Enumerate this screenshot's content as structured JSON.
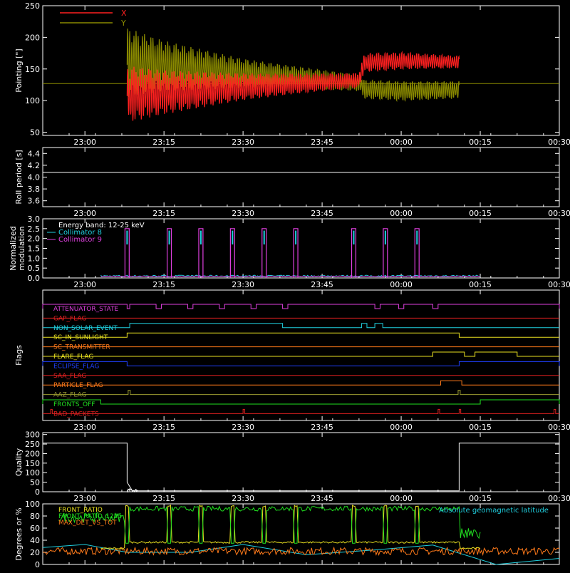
{
  "x_ticks": [
    "23:00",
    "23:15",
    "23:30",
    "23:45",
    "00:00",
    "00:15",
    "00:30"
  ],
  "colors": {
    "background": "#000000",
    "axes": "#ffffff",
    "x": "#ff2020",
    "y": "#8a8a00",
    "magenta": "#e040e0",
    "cyan": "#20d0e0",
    "white": "#ffffff",
    "red": "#e02020",
    "orange": "#ff7a1a",
    "yellow": "#e8e020",
    "green": "#20e020",
    "blue": "#2040ff",
    "olive": "#9a9a30"
  },
  "chart_data": [
    {
      "type": "line",
      "ylabel": "Pointing [\"]",
      "yticks": [
        "50",
        "100",
        "150",
        "200",
        "250"
      ],
      "ylim": [
        45,
        250
      ],
      "legend": [
        {
          "name": "X",
          "color": "#ff2020"
        },
        {
          "name": "Y",
          "color": "#8a8a00"
        }
      ],
      "baseline": 127,
      "series": [
        {
          "name": "X",
          "x": [
            "23:08",
            "23:15",
            "23:30",
            "23:45",
            "23:52",
            "23:53",
            "00:00",
            "00:11"
          ],
          "center": [
            110,
            113,
            122,
            129,
            132,
            160,
            163,
            161
          ],
          "amplitude": [
            45,
            35,
            22,
            14,
            12,
            15,
            14,
            10
          ]
        },
        {
          "name": "Y",
          "x": [
            "23:08",
            "23:15",
            "23:30",
            "23:45",
            "23:52",
            "23:53",
            "00:00",
            "00:11"
          ],
          "center": [
            160,
            155,
            143,
            133,
            128,
            118,
            115,
            117
          ],
          "amplitude": [
            55,
            40,
            24,
            16,
            13,
            15,
            16,
            14
          ]
        }
      ]
    },
    {
      "type": "line",
      "ylabel": "Roll period [s]",
      "yticks": [
        "3.6",
        "3.8",
        "4.0",
        "4.2",
        "4.4"
      ],
      "ylim": [
        3.5,
        4.5
      ],
      "series": [
        {
          "name": "",
          "x": [
            "22:52",
            "00:30"
          ],
          "y": [
            4.08,
            4.08
          ]
        }
      ]
    },
    {
      "type": "line",
      "ylabel": "Normalized modulation",
      "yticks": [
        "0.0",
        "0.5",
        "1.0",
        "1.5",
        "2.0",
        "2.5",
        "3.0"
      ],
      "ylim": [
        0,
        3
      ],
      "legend": [
        {
          "name": "Energy band: 12-25 keV",
          "color": "#ffffff"
        },
        {
          "name": "Collimator 8",
          "color": "#20d0e0"
        },
        {
          "name": "Collimator 9",
          "color": "#e040e0"
        }
      ],
      "spikes_at": [
        "23:08",
        "23:16",
        "23:22",
        "23:28",
        "23:34",
        "23:40",
        "23:51",
        "23:57",
        "00:03"
      ],
      "spike_peak": 2.5,
      "noise_range": [
        "23:03",
        "00:15"
      ]
    },
    {
      "type": "line",
      "ylabel": "Flags",
      "rows": [
        {
          "label": "ATTENUATOR_STATE",
          "color": "#e040e0",
          "high_intervals": [
            [
              "22:52",
              "23:08"
            ],
            [
              "23:08.5",
              "23:13.5"
            ],
            [
              "23:14.5",
              "23:19.5"
            ],
            [
              "23:20.5",
              "23:25.5"
            ],
            [
              "23:26.5",
              "23:31.5"
            ],
            [
              "23:32.5",
              "23:37.5"
            ],
            [
              "23:38.5",
              "23:55"
            ],
            [
              "23:56",
              "23:59.5"
            ],
            [
              "00:00.5",
              "00:06"
            ],
            [
              "00:07",
              "00:30"
            ]
          ]
        },
        {
          "label": "GAP_FLAG",
          "color": "#e02020",
          "high_intervals": []
        },
        {
          "label": "NON_SOLAR_EVENT",
          "color": "#20d0e0",
          "high_intervals": [
            [
              "23:08.5",
              "23:37.5"
            ],
            [
              "23:52.5",
              "23:53.5"
            ],
            [
              "23:55",
              "23:56.5"
            ]
          ]
        },
        {
          "label": "SC_IN_SUNLIGHT",
          "color": "#e8e020",
          "high_intervals": [
            [
              "23:08",
              "00:11"
            ]
          ]
        },
        {
          "label": "SC_TRANSMITTER",
          "color": "#ff7a1a",
          "high_intervals": []
        },
        {
          "label": "FLARE_FLAG",
          "color": "#e8e020",
          "high_intervals": [
            [
              "00:06",
              "00:12"
            ],
            [
              "00:14",
              "00:22"
            ]
          ]
        },
        {
          "label": "ECLIPSE_FLAG",
          "color": "#2040ff",
          "high_intervals": [
            [
              "22:52",
              "23:08"
            ],
            [
              "00:11",
              "00:30"
            ]
          ]
        },
        {
          "label": "SAA_FLAG",
          "color": "#e02020",
          "high_intervals": []
        },
        {
          "label": "PARTICLE_FLAG",
          "color": "#ff7a1a",
          "high_intervals": [
            [
              "00:07.5",
              "00:11.5"
            ]
          ]
        },
        {
          "label": "AAZ_FLAG",
          "color": "#9a9a30",
          "high_intervals": [
            [
              "23:08.2",
              "23:08.6"
            ],
            [
              "00:10.8",
              "00:11.2"
            ]
          ]
        },
        {
          "label": "FRONTS_OFF",
          "color": "#20e020",
          "high_intervals": [
            [
              "22:52",
              "23:03"
            ],
            [
              "00:15",
              "00:30"
            ]
          ]
        },
        {
          "label": "BAD_PACKETS",
          "color": "#e02020",
          "high_intervals": [
            [
              "22:53.5",
              "22:53.8"
            ],
            [
              "23:30",
              "23:30.3"
            ],
            [
              "00:07",
              "00:07.3"
            ],
            [
              "00:11",
              "00:11.3"
            ],
            [
              "00:29",
              "00:29.3"
            ]
          ]
        }
      ]
    },
    {
      "type": "line",
      "ylabel": "Quality",
      "yticks": [
        "0",
        "50",
        "100",
        "150",
        "200",
        "250",
        "300"
      ],
      "ylim": [
        0,
        310
      ],
      "series": [
        {
          "name": "",
          "x": [
            "22:52",
            "23:08",
            "23:08",
            "23:09",
            "00:11",
            "00:11",
            "00:30"
          ],
          "y": [
            255,
            255,
            50,
            5,
            5,
            255,
            255
          ]
        }
      ]
    },
    {
      "type": "line",
      "ylabel": "Degrees or %",
      "yticks": [
        "0",
        "20",
        "40",
        "60",
        "80",
        "100"
      ],
      "ylim": [
        0,
        100
      ],
      "legend": [
        {
          "name": "FRONT_RATIO",
          "color": "#e8e020"
        },
        {
          "name": "FRONT_RATIO_1225",
          "color": "#20e020"
        },
        {
          "name": "MAX_DET_VS_TOT",
          "color": "#ff7a1a"
        },
        {
          "name": "Absolute geomagnetic latitude",
          "color": "#20d0e0"
        }
      ],
      "series": [
        {
          "name": "Absolute geomagnetic latitude",
          "x": [
            "22:52",
            "23:00",
            "23:08",
            "23:20",
            "23:30",
            "23:42",
            "23:55",
            "00:06",
            "00:18",
            "00:30"
          ],
          "y": [
            28,
            33,
            20,
            20,
            33,
            16,
            24,
            32,
            0,
            10
          ]
        }
      ]
    }
  ]
}
